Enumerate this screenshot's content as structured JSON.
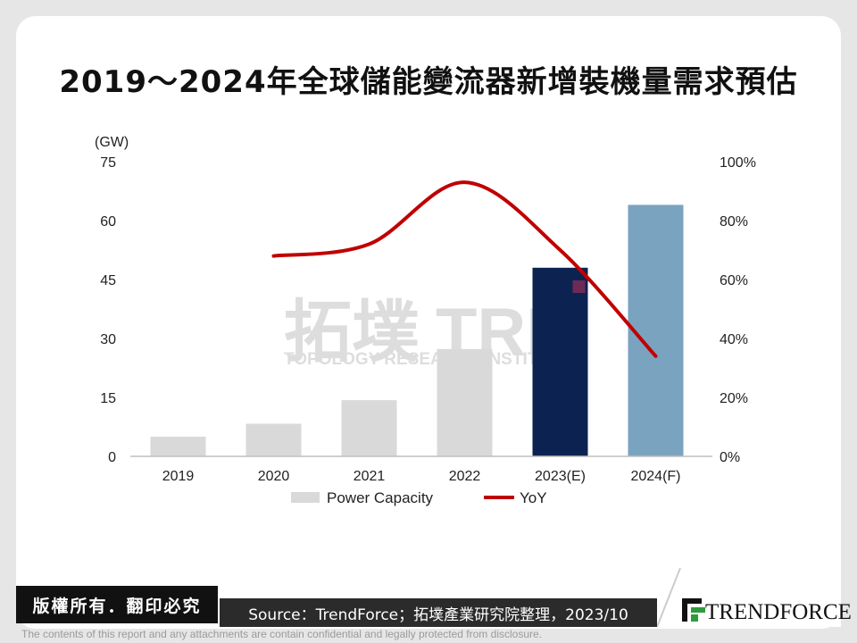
{
  "title": "2019～2024年全球儲能變流器新增裝機量需求預估",
  "chart_data": {
    "type": "bar+line",
    "categories": [
      "2019",
      "2020",
      "2021",
      "2022",
      "2023(E)",
      "2024(F)"
    ],
    "y_left": {
      "label": "(GW)",
      "min": 0,
      "max": 75,
      "ticks": [
        "0",
        "15",
        "30",
        "45",
        "60",
        "75"
      ]
    },
    "y_right": {
      "min": 0,
      "max": 100,
      "ticks": [
        "0%",
        "20%",
        "40%",
        "60%",
        "80%",
        "100%"
      ]
    },
    "series": [
      {
        "name": "Power Capacity",
        "type": "bar",
        "values": [
          5,
          8.3,
          14.3,
          27.3,
          48,
          64
        ]
      },
      {
        "name": "YoY",
        "type": "line",
        "values": [
          null,
          68,
          72,
          93,
          70,
          34
        ]
      }
    ],
    "bar_colors": [
      "#d9d9d9",
      "#d9d9d9",
      "#d9d9d9",
      "#d9d9d9",
      "#0c2352",
      "#7aa3c0"
    ],
    "line_color": "#c00000",
    "legend": {
      "bar": "Power Capacity",
      "line": "YoY",
      "position": "bottom"
    }
  },
  "watermark": {
    "main": "拓墣",
    "sub": "TOPOLOGY RESEARCH INSTITUTE",
    "mark": "TRI"
  },
  "footer": {
    "copyright": "版權所有．翻印必究",
    "source": "Source：TrendForce；拓墣產業研究院整理，2023/10",
    "logo": "TRENDFORCE",
    "disclaimer": "The contents of this report and any attachments are contain confidential and legally protected from disclosure."
  }
}
